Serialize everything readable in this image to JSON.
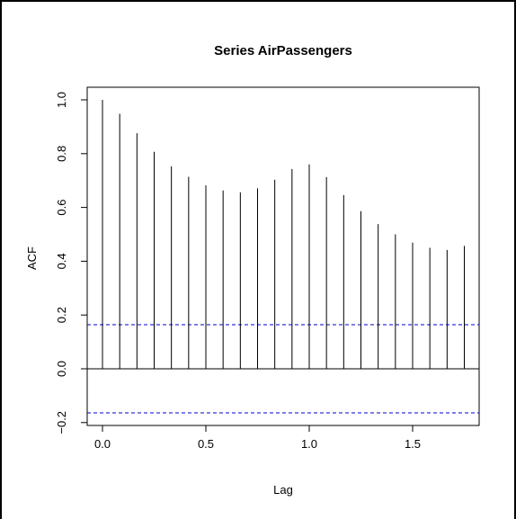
{
  "chart_data": {
    "type": "bar",
    "title": "Series  AirPassengers",
    "xlabel": "Lag",
    "ylabel": "ACF",
    "xlim": [
      -0.07,
      1.82
    ],
    "ylim": [
      -0.2,
      1.0
    ],
    "x_ticks": [
      "0.0",
      "0.5",
      "1.0",
      "1.5"
    ],
    "x_tick_values": [
      0.0,
      0.5,
      1.0,
      1.5
    ],
    "y_ticks": [
      "−0.2",
      "0.0",
      "0.2",
      "0.4",
      "0.6",
      "0.8",
      "1.0"
    ],
    "y_tick_values": [
      -0.2,
      0.0,
      0.2,
      0.4,
      0.6,
      0.8,
      1.0
    ],
    "lags": [
      0.0,
      0.0833,
      0.1667,
      0.25,
      0.3333,
      0.4167,
      0.5,
      0.5833,
      0.6667,
      0.75,
      0.8333,
      0.9167,
      1.0,
      1.0833,
      1.1667,
      1.25,
      1.3333,
      1.4167,
      1.5,
      1.5833,
      1.6667,
      1.75
    ],
    "values": [
      1.0,
      0.948,
      0.876,
      0.807,
      0.753,
      0.714,
      0.682,
      0.663,
      0.656,
      0.671,
      0.703,
      0.743,
      0.76,
      0.713,
      0.646,
      0.586,
      0.538,
      0.5,
      0.469,
      0.45,
      0.442,
      0.457
    ],
    "confidence_bound": 0.164,
    "grid": false,
    "colors": {
      "bars": "#000000",
      "confidence": "#0000cc",
      "zero_line": "#000000"
    }
  }
}
